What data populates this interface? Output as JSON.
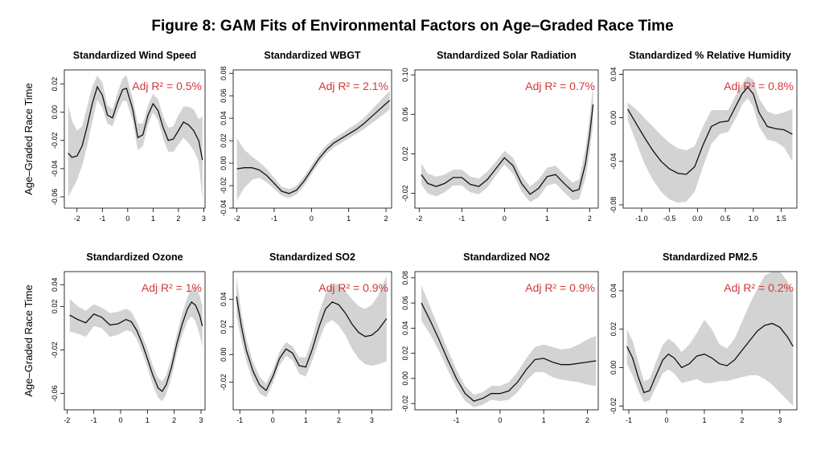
{
  "title": "Figure 8: GAM Fits of Environmental Factors on Age–Graded Race Time",
  "ylabel": "Age–Graded Race Time",
  "colors": {
    "band": "#d3d3d3",
    "line": "#111111",
    "r2": "#d0383a"
  },
  "chart_data": [
    {
      "type": "line",
      "title": "Standardized Wind Speed",
      "annotation": "Adj R² = 0.5%",
      "xlim": [
        -2.5,
        3.05
      ],
      "ylim": [
        -0.068,
        0.03
      ],
      "xticks": [
        -2,
        -1,
        0,
        1,
        2,
        3
      ],
      "yticks": [
        -0.06,
        -0.04,
        -0.02,
        0.0,
        0.02
      ],
      "ytick_labels": [
        "-0.06",
        "-0.04",
        "-0.02",
        "0.00",
        "0.02"
      ],
      "x": [
        -2.35,
        -2.2,
        -2.0,
        -1.8,
        -1.6,
        -1.4,
        -1.2,
        -1.0,
        -0.8,
        -0.6,
        -0.4,
        -0.2,
        -0.05,
        0.2,
        0.4,
        0.6,
        0.8,
        1.0,
        1.2,
        1.4,
        1.6,
        1.8,
        2.0,
        2.2,
        2.4,
        2.6,
        2.8,
        2.95
      ],
      "y": [
        -0.029,
        -0.032,
        -0.031,
        -0.024,
        -0.01,
        0.006,
        0.018,
        0.012,
        -0.002,
        -0.004,
        0.007,
        0.016,
        0.017,
        0.002,
        -0.018,
        -0.016,
        -0.002,
        0.006,
        0.001,
        -0.011,
        -0.02,
        -0.019,
        -0.013,
        -0.007,
        -0.009,
        -0.013,
        -0.02,
        -0.034
      ],
      "lower": [
        -0.06,
        -0.055,
        -0.048,
        -0.038,
        -0.024,
        -0.007,
        0.009,
        0.003,
        -0.008,
        -0.01,
        0.0,
        0.008,
        0.008,
        -0.006,
        -0.027,
        -0.024,
        -0.009,
        0.0,
        -0.006,
        -0.019,
        -0.028,
        -0.028,
        -0.023,
        -0.018,
        -0.022,
        -0.027,
        -0.035,
        -0.062
      ],
      "upper": [
        0.005,
        -0.006,
        -0.013,
        -0.01,
        0.004,
        0.018,
        0.026,
        0.021,
        0.005,
        0.002,
        0.014,
        0.024,
        0.026,
        0.01,
        -0.008,
        -0.008,
        0.005,
        0.013,
        0.009,
        -0.003,
        -0.011,
        -0.01,
        -0.002,
        0.004,
        0.004,
        0.002,
        -0.005,
        -0.003
      ]
    },
    {
      "type": "line",
      "title": "Standardized WBGT",
      "annotation": "Adj R² = 2.1%",
      "xlim": [
        -2.1,
        2.15
      ],
      "ylim": [
        -0.04,
        0.083
      ],
      "xticks": [
        -2,
        -1,
        0,
        1,
        2
      ],
      "yticks": [
        -0.04,
        -0.02,
        0.0,
        0.02,
        0.04,
        0.06,
        0.08
      ],
      "ytick_labels": [
        "-0.04",
        "-0.02",
        "0.00",
        "0.02",
        "0.04",
        "0.06",
        "0.08"
      ],
      "x": [
        -2.0,
        -1.8,
        -1.6,
        -1.4,
        -1.2,
        -1.0,
        -0.8,
        -0.6,
        -0.4,
        -0.2,
        0.0,
        0.2,
        0.4,
        0.6,
        0.8,
        1.0,
        1.2,
        1.4,
        1.6,
        1.8,
        2.0,
        2.1
      ],
      "y": [
        -0.005,
        -0.004,
        -0.004,
        -0.006,
        -0.011,
        -0.018,
        -0.025,
        -0.027,
        -0.024,
        -0.016,
        -0.006,
        0.004,
        0.012,
        0.018,
        0.022,
        0.026,
        0.03,
        0.035,
        0.041,
        0.047,
        0.053,
        0.056
      ],
      "lower": [
        -0.033,
        -0.022,
        -0.015,
        -0.013,
        -0.017,
        -0.023,
        -0.029,
        -0.031,
        -0.028,
        -0.02,
        -0.01,
        0.0,
        0.008,
        0.014,
        0.018,
        0.022,
        0.026,
        0.03,
        0.035,
        0.04,
        0.045,
        0.048
      ],
      "upper": [
        0.022,
        0.012,
        0.006,
        0.001,
        -0.005,
        -0.013,
        -0.021,
        -0.023,
        -0.02,
        -0.012,
        -0.002,
        0.008,
        0.016,
        0.022,
        0.026,
        0.031,
        0.035,
        0.04,
        0.047,
        0.054,
        0.061,
        0.064
      ]
    },
    {
      "type": "line",
      "title": "Standardized Solar Radiation",
      "annotation": "Adj R² = 0.7%",
      "xlim": [
        -2.1,
        2.2
      ],
      "ylim": [
        -0.035,
        0.105
      ],
      "xticks": [
        -2,
        -1,
        0,
        1,
        2
      ],
      "yticks": [
        -0.02,
        0.02,
        0.06,
        0.1
      ],
      "ytick_labels": [
        "-0.02",
        "0.02",
        "0.06",
        "0.10"
      ],
      "x": [
        -1.95,
        -1.8,
        -1.6,
        -1.4,
        -1.2,
        -1.0,
        -0.8,
        -0.6,
        -0.4,
        -0.2,
        0.0,
        0.2,
        0.4,
        0.6,
        0.8,
        1.0,
        1.2,
        1.4,
        1.6,
        1.75,
        1.9,
        2.0,
        2.08
      ],
      "y": [
        -0.001,
        -0.01,
        -0.013,
        -0.01,
        -0.004,
        -0.004,
        -0.011,
        -0.013,
        -0.006,
        0.005,
        0.016,
        0.008,
        -0.01,
        -0.021,
        -0.015,
        -0.003,
        -0.001,
        -0.01,
        -0.018,
        -0.016,
        0.01,
        0.04,
        0.07
      ],
      "lower": [
        -0.011,
        -0.02,
        -0.023,
        -0.019,
        -0.012,
        -0.012,
        -0.019,
        -0.021,
        -0.014,
        -0.002,
        0.009,
        0.0,
        -0.018,
        -0.029,
        -0.024,
        -0.012,
        -0.01,
        -0.019,
        -0.027,
        -0.026,
        -0.005,
        0.022,
        0.05
      ],
      "upper": [
        0.01,
        0.0,
        -0.003,
        -0.001,
        0.004,
        0.004,
        -0.003,
        -0.005,
        0.002,
        0.012,
        0.023,
        0.016,
        -0.002,
        -0.013,
        -0.006,
        0.006,
        0.008,
        -0.001,
        -0.009,
        -0.006,
        0.025,
        0.058,
        0.09
      ]
    },
    {
      "type": "line",
      "title": "Standardized % Relative Humidity",
      "annotation": "Adj R² = 0.8%",
      "xlim": [
        -1.33,
        1.78
      ],
      "ylim": [
        -0.083,
        0.044
      ],
      "xticks": [
        -1.0,
        -0.5,
        0.0,
        0.5,
        1.0,
        1.5
      ],
      "yticks": [
        -0.08,
        -0.04,
        0.0,
        0.04
      ],
      "xtick_labels": [
        "-1.0",
        "-0.5",
        "0.0",
        "0.5",
        "1.0",
        "1.5"
      ],
      "ytick_labels": [
        "-0.08",
        "-0.04",
        "0.00",
        "0.04"
      ],
      "x": [
        -1.25,
        -1.1,
        -0.95,
        -0.8,
        -0.65,
        -0.5,
        -0.35,
        -0.2,
        -0.05,
        0.1,
        0.25,
        0.4,
        0.55,
        0.7,
        0.8,
        0.9,
        1.0,
        1.1,
        1.25,
        1.4,
        1.55,
        1.7
      ],
      "y": [
        0.008,
        -0.005,
        -0.018,
        -0.03,
        -0.04,
        -0.047,
        -0.051,
        -0.052,
        -0.045,
        -0.025,
        -0.008,
        -0.004,
        -0.003,
        0.012,
        0.022,
        0.028,
        0.022,
        0.005,
        -0.008,
        -0.01,
        -0.011,
        -0.015
      ],
      "lower": [
        -0.002,
        -0.022,
        -0.042,
        -0.057,
        -0.068,
        -0.075,
        -0.078,
        -0.077,
        -0.068,
        -0.045,
        -0.024,
        -0.015,
        -0.013,
        0.001,
        0.012,
        0.018,
        0.01,
        -0.008,
        -0.02,
        -0.022,
        -0.027,
        -0.04
      ],
      "upper": [
        0.014,
        0.008,
        0.0,
        -0.008,
        -0.016,
        -0.023,
        -0.028,
        -0.03,
        -0.026,
        -0.008,
        0.007,
        0.007,
        0.007,
        0.022,
        0.031,
        0.038,
        0.035,
        0.018,
        0.006,
        0.003,
        0.005,
        0.008
      ]
    },
    {
      "type": "line",
      "title": "Standardized Ozone",
      "annotation": "Adj R² = 1%",
      "xlim": [
        -2.1,
        3.15
      ],
      "ylim": [
        -0.075,
        0.052
      ],
      "xticks": [
        -2,
        -1,
        0,
        1,
        2,
        3
      ],
      "yticks": [
        -0.06,
        -0.02,
        0.02,
        0.04
      ],
      "ytick_labels": [
        "-0.06",
        "-0.02",
        "0.02",
        "0.04"
      ],
      "x": [
        -1.9,
        -1.6,
        -1.3,
        -1.0,
        -0.7,
        -0.4,
        -0.1,
        0.2,
        0.4,
        0.6,
        0.8,
        1.0,
        1.2,
        1.4,
        1.55,
        1.7,
        1.9,
        2.1,
        2.3,
        2.5,
        2.65,
        2.8,
        2.95,
        3.05
      ],
      "y": [
        0.012,
        0.008,
        0.005,
        0.013,
        0.01,
        0.003,
        0.004,
        0.008,
        0.006,
        -0.002,
        -0.014,
        -0.028,
        -0.043,
        -0.055,
        -0.058,
        -0.052,
        -0.036,
        -0.014,
        0.004,
        0.018,
        0.024,
        0.021,
        0.012,
        0.002
      ],
      "lower": [
        -0.003,
        -0.005,
        -0.008,
        0.002,
        0.0,
        -0.008,
        -0.006,
        -0.002,
        -0.003,
        -0.01,
        -0.022,
        -0.036,
        -0.052,
        -0.064,
        -0.067,
        -0.061,
        -0.045,
        -0.023,
        -0.006,
        0.007,
        0.011,
        0.006,
        -0.006,
        -0.017
      ],
      "upper": [
        0.027,
        0.02,
        0.016,
        0.022,
        0.019,
        0.014,
        0.015,
        0.018,
        0.015,
        0.006,
        -0.006,
        -0.019,
        -0.034,
        -0.046,
        -0.049,
        -0.043,
        -0.027,
        -0.005,
        0.014,
        0.029,
        0.037,
        0.038,
        0.03,
        0.02
      ]
    },
    {
      "type": "line",
      "title": "Standardized SO2",
      "annotation": "Adj R² = 0.9%",
      "xlim": [
        -1.2,
        3.6
      ],
      "ylim": [
        -0.04,
        0.06
      ],
      "xticks": [
        -1,
        0,
        1,
        2,
        3
      ],
      "yticks": [
        -0.02,
        0.0,
        0.02,
        0.04
      ],
      "ytick_labels": [
        "-0.02",
        "0.00",
        "0.02",
        "0.04"
      ],
      "x": [
        -1.1,
        -0.95,
        -0.8,
        -0.6,
        -0.4,
        -0.2,
        0.0,
        0.2,
        0.4,
        0.6,
        0.8,
        1.0,
        1.2,
        1.4,
        1.6,
        1.8,
        2.0,
        2.2,
        2.4,
        2.6,
        2.8,
        3.0,
        3.2,
        3.45
      ],
      "y": [
        0.042,
        0.02,
        0.003,
        -0.012,
        -0.022,
        -0.026,
        -0.016,
        -0.003,
        0.004,
        0.001,
        -0.008,
        -0.009,
        0.004,
        0.02,
        0.033,
        0.038,
        0.036,
        0.03,
        0.022,
        0.016,
        0.013,
        0.014,
        0.018,
        0.026
      ],
      "lower": [
        0.028,
        0.01,
        -0.005,
        -0.019,
        -0.028,
        -0.031,
        -0.021,
        -0.008,
        -0.001,
        -0.004,
        -0.014,
        -0.016,
        -0.004,
        0.01,
        0.022,
        0.025,
        0.021,
        0.014,
        0.004,
        -0.003,
        -0.007,
        -0.008,
        -0.007,
        -0.005
      ],
      "upper": [
        0.056,
        0.03,
        0.011,
        -0.005,
        -0.016,
        -0.021,
        -0.011,
        0.002,
        0.009,
        0.006,
        -0.002,
        -0.002,
        0.012,
        0.03,
        0.044,
        0.051,
        0.051,
        0.046,
        0.04,
        0.035,
        0.033,
        0.036,
        0.043,
        0.057
      ]
    },
    {
      "type": "line",
      "title": "Standardized NO2",
      "annotation": "Adj R² = 0.9%",
      "xlim": [
        -1.95,
        2.25
      ],
      "ylim": [
        -0.025,
        0.085
      ],
      "xticks": [
        -1,
        0,
        1,
        2
      ],
      "yticks": [
        -0.02,
        0.0,
        0.02,
        0.04,
        0.06,
        0.08
      ],
      "ytick_labels": [
        "-0.02",
        "0.00",
        "0.02",
        "0.04",
        "0.06",
        "0.08"
      ],
      "x": [
        -1.8,
        -1.6,
        -1.4,
        -1.2,
        -1.0,
        -0.8,
        -0.6,
        -0.4,
        -0.2,
        0.0,
        0.2,
        0.4,
        0.6,
        0.8,
        1.0,
        1.2,
        1.4,
        1.6,
        1.8,
        2.0,
        2.2
      ],
      "y": [
        0.06,
        0.046,
        0.031,
        0.015,
        0.0,
        -0.012,
        -0.018,
        -0.016,
        -0.012,
        -0.012,
        -0.01,
        -0.003,
        0.007,
        0.015,
        0.016,
        0.013,
        0.011,
        0.011,
        0.012,
        0.013,
        0.014
      ],
      "lower": [
        0.046,
        0.035,
        0.022,
        0.007,
        -0.007,
        -0.018,
        -0.023,
        -0.021,
        -0.017,
        -0.018,
        -0.017,
        -0.011,
        -0.002,
        0.005,
        0.005,
        0.001,
        -0.001,
        -0.002,
        -0.003,
        -0.005,
        -0.006
      ],
      "upper": [
        0.074,
        0.057,
        0.04,
        0.023,
        0.007,
        -0.006,
        -0.013,
        -0.011,
        -0.006,
        -0.006,
        -0.003,
        0.005,
        0.016,
        0.025,
        0.027,
        0.025,
        0.023,
        0.024,
        0.027,
        0.031,
        0.034
      ]
    },
    {
      "type": "line",
      "title": "Standardized PM2.5",
      "annotation": "Adj R² = 0.2%",
      "xlim": [
        -1.15,
        3.45
      ],
      "ylim": [
        -0.022,
        0.05
      ],
      "xticks": [
        -1,
        0,
        1,
        2,
        3
      ],
      "yticks": [
        -0.02,
        0.0,
        0.02,
        0.04
      ],
      "ytick_labels": [
        "-0.02",
        "0.00",
        "0.02",
        "0.04"
      ],
      "x": [
        -1.05,
        -0.9,
        -0.75,
        -0.6,
        -0.45,
        -0.3,
        -0.1,
        0.05,
        0.2,
        0.4,
        0.6,
        0.8,
        1.0,
        1.2,
        1.4,
        1.6,
        1.8,
        2.0,
        2.2,
        2.4,
        2.6,
        2.8,
        3.0,
        3.2,
        3.35
      ],
      "y": [
        0.011,
        0.005,
        -0.005,
        -0.013,
        -0.012,
        -0.005,
        0.004,
        0.007,
        0.005,
        0.0,
        0.002,
        0.006,
        0.007,
        0.005,
        0.002,
        0.001,
        0.004,
        0.009,
        0.014,
        0.019,
        0.022,
        0.023,
        0.021,
        0.016,
        0.011
      ],
      "lower": [
        0.002,
        -0.004,
        -0.012,
        -0.018,
        -0.017,
        -0.011,
        -0.003,
        -0.001,
        -0.003,
        -0.008,
        -0.007,
        -0.006,
        -0.008,
        -0.008,
        -0.007,
        -0.007,
        -0.006,
        -0.005,
        -0.004,
        -0.004,
        -0.006,
        -0.009,
        -0.013,
        -0.017,
        -0.02
      ],
      "upper": [
        0.02,
        0.014,
        0.003,
        -0.007,
        -0.006,
        0.002,
        0.012,
        0.015,
        0.013,
        0.008,
        0.012,
        0.018,
        0.025,
        0.02,
        0.012,
        0.01,
        0.015,
        0.024,
        0.033,
        0.041,
        0.048,
        0.05,
        0.05,
        0.045,
        0.039
      ]
    }
  ]
}
